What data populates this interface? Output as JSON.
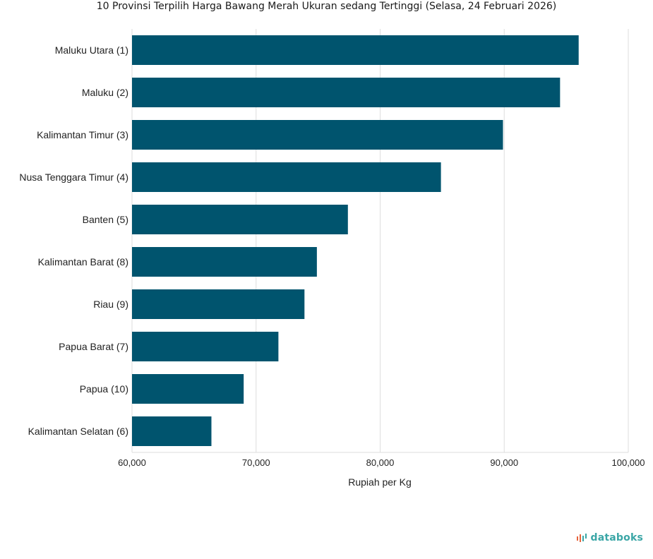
{
  "chart_data": {
    "type": "bar",
    "orientation": "horizontal",
    "title": "10 Provinsi Terpilih Harga Bawang Merah Ukuran sedang Tertinggi (Selasa, 24 Februari 2026)",
    "xlabel": "Rupiah per Kg",
    "ylabel": "",
    "categories": [
      "Maluku Utara (1)",
      "Maluku (2)",
      "Kalimantan Timur (3)",
      "Nusa Tenggara Timur (4)",
      "Banten (5)",
      "Kalimantan Barat (8)",
      "Riau (9)",
      "Papua Barat (7)",
      "Papua (10)",
      "Kalimantan Selatan (6)"
    ],
    "values": [
      96000,
      94500,
      89900,
      84900,
      77400,
      74900,
      73900,
      71800,
      69000,
      66400
    ],
    "xlim": [
      60000,
      100000
    ],
    "ticks": [
      60000,
      70000,
      80000,
      90000,
      100000
    ],
    "tick_labels": [
      "60,000",
      "70,000",
      "80,000",
      "90,000",
      "100,000"
    ],
    "grid": true,
    "bar_color": "#00546e",
    "grid_color": "#dddddd"
  },
  "brand": {
    "name": "databoks",
    "text_color": "#3aa6a6",
    "icon_color": "#e8643c",
    "icon": "databoks-logo-icon"
  }
}
